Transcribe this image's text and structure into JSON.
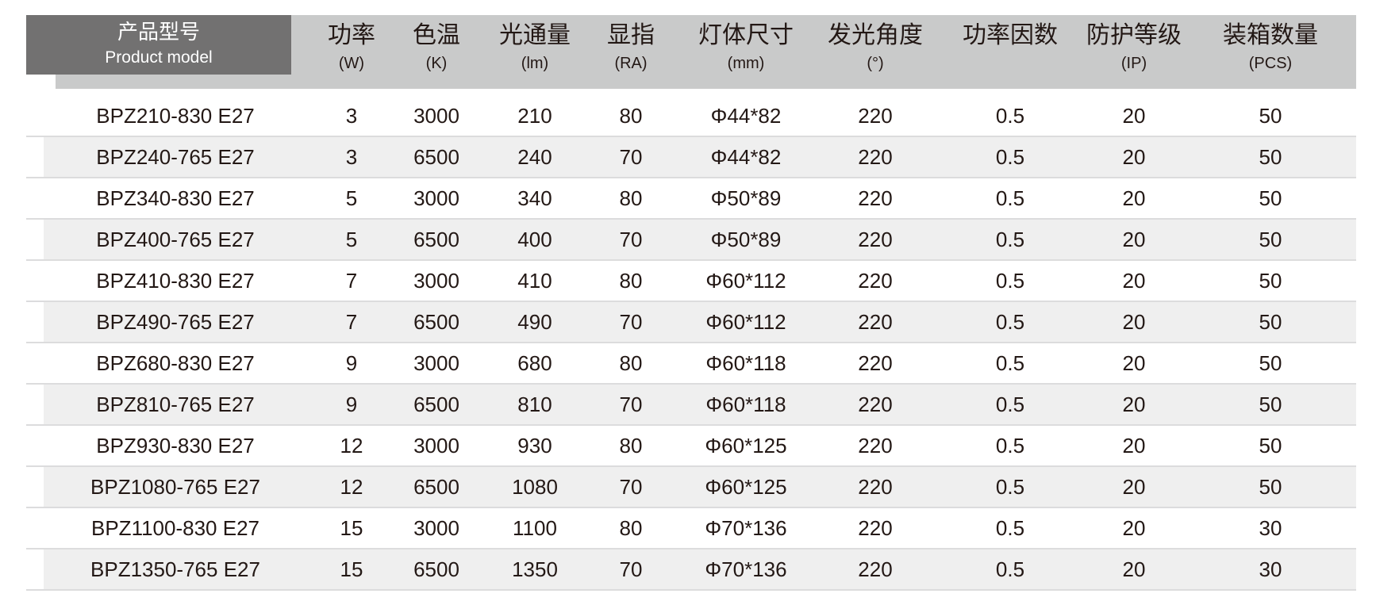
{
  "header": {
    "model": {
      "zh": "产品型号",
      "en": "Product model"
    },
    "columns": [
      {
        "zh": "功率",
        "unit": "(W)"
      },
      {
        "zh": "色温",
        "unit": "(K)"
      },
      {
        "zh": "光通量",
        "unit": "(lm)"
      },
      {
        "zh": "显指",
        "unit": "(RA)"
      },
      {
        "zh": "灯体尺寸",
        "unit": "(mm)"
      },
      {
        "zh": "发光角度",
        "unit": "(°)"
      },
      {
        "zh": "功率因数",
        "unit": ""
      },
      {
        "zh": "防护等级",
        "unit": "(IP)"
      },
      {
        "zh": "装箱数量",
        "unit": "(PCS)"
      }
    ]
  },
  "rows": [
    [
      "BPZ210-830 E27",
      "3",
      "3000",
      "210",
      "80",
      "Φ44*82",
      "220",
      "0.5",
      "20",
      "50"
    ],
    [
      "BPZ240-765 E27",
      "3",
      "6500",
      "240",
      "70",
      "Φ44*82",
      "220",
      "0.5",
      "20",
      "50"
    ],
    [
      "BPZ340-830 E27",
      "5",
      "3000",
      "340",
      "80",
      "Φ50*89",
      "220",
      "0.5",
      "20",
      "50"
    ],
    [
      "BPZ400-765 E27",
      "5",
      "6500",
      "400",
      "70",
      "Φ50*89",
      "220",
      "0.5",
      "20",
      "50"
    ],
    [
      "BPZ410-830 E27",
      "7",
      "3000",
      "410",
      "80",
      "Φ60*112",
      "220",
      "0.5",
      "20",
      "50"
    ],
    [
      "BPZ490-765 E27",
      "7",
      "6500",
      "490",
      "70",
      "Φ60*112",
      "220",
      "0.5",
      "20",
      "50"
    ],
    [
      "BPZ680-830 E27",
      "9",
      "3000",
      "680",
      "80",
      "Φ60*118",
      "220",
      "0.5",
      "20",
      "50"
    ],
    [
      "BPZ810-765 E27",
      "9",
      "6500",
      "810",
      "70",
      "Φ60*118",
      "220",
      "0.5",
      "20",
      "50"
    ],
    [
      "BPZ930-830 E27",
      "12",
      "3000",
      "930",
      "80",
      "Φ60*125",
      "220",
      "0.5",
      "20",
      "50"
    ],
    [
      "BPZ1080-765 E27",
      "12",
      "6500",
      "1080",
      "70",
      "Φ60*125",
      "220",
      "0.5",
      "20",
      "50"
    ],
    [
      "BPZ1100-830 E27",
      "15",
      "3000",
      "1100",
      "80",
      "Φ70*136",
      "220",
      "0.5",
      "20",
      "30"
    ],
    [
      "BPZ1350-765 E27",
      "15",
      "6500",
      "1350",
      "70",
      "Φ70*136",
      "220",
      "0.5",
      "20",
      "30"
    ]
  ],
  "colors": {
    "header_band": "#c9caca",
    "model_header": "#727171",
    "row_shade": "#efefef",
    "text": "#231815"
  }
}
